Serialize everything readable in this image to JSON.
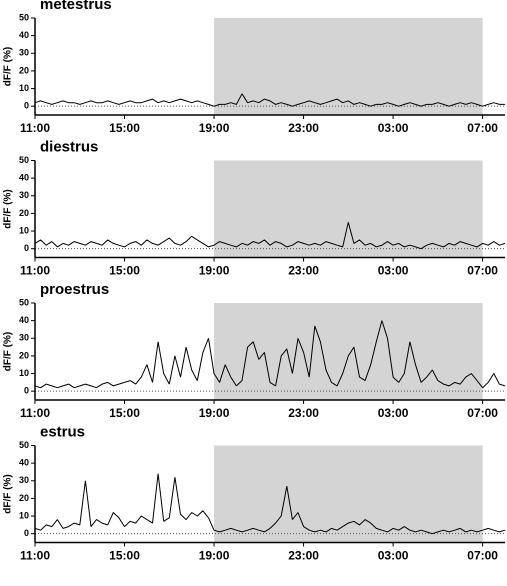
{
  "chart_data": [
    {
      "type": "line",
      "title": "metestrus",
      "ylabel": "dF/F (%)",
      "color": "#000000",
      "shade_color": "#d4d4d4",
      "shaded_x": [
        19,
        31
      ],
      "x": [
        11,
        11.25,
        11.5,
        11.75,
        12,
        12.25,
        12.5,
        12.75,
        13,
        13.25,
        13.5,
        13.75,
        14,
        14.25,
        14.5,
        14.75,
        15,
        15.25,
        15.5,
        15.75,
        16,
        16.25,
        16.5,
        16.75,
        17,
        17.25,
        17.5,
        17.75,
        18,
        18.25,
        18.5,
        18.75,
        19,
        19.25,
        19.5,
        19.75,
        20,
        20.25,
        20.5,
        20.75,
        21,
        21.25,
        21.5,
        21.75,
        22,
        22.25,
        22.5,
        22.75,
        23,
        23.25,
        23.5,
        23.75,
        24,
        24.25,
        24.5,
        24.75,
        25,
        25.25,
        25.5,
        25.75,
        26,
        26.25,
        26.5,
        26.75,
        27,
        27.25,
        27.5,
        27.75,
        28,
        28.25,
        28.5,
        28.75,
        29,
        29.25,
        29.5,
        29.75,
        30,
        30.25,
        30.5,
        30.75,
        31,
        31.25,
        31.5,
        31.75,
        32
      ],
      "values": [
        2,
        3,
        2,
        1,
        2,
        3,
        2,
        2,
        1,
        2,
        3,
        2,
        2,
        3,
        2,
        1,
        2,
        3,
        2,
        2,
        3,
        4,
        2,
        3,
        2,
        3,
        4,
        3,
        2,
        3,
        2,
        1,
        0,
        1,
        1,
        2,
        1,
        7,
        2,
        3,
        2,
        4,
        3,
        1,
        2,
        1,
        0,
        1,
        2,
        3,
        2,
        1,
        2,
        3,
        4,
        2,
        3,
        1,
        2,
        1,
        0,
        1,
        1,
        2,
        1,
        0,
        1,
        2,
        1,
        0,
        1,
        1,
        2,
        1,
        0,
        1,
        2,
        1,
        2,
        1,
        0,
        1,
        2,
        1,
        1
      ],
      "xlim": [
        11,
        32
      ],
      "ylim": [
        -5,
        50
      ],
      "yticks": [
        0,
        10,
        20,
        30,
        40,
        50
      ],
      "xticks": [
        {
          "value": 11,
          "label": "11:00"
        },
        {
          "value": 15,
          "label": "15:00"
        },
        {
          "value": 19,
          "label": "19:00"
        },
        {
          "value": 23,
          "label": "23:00"
        },
        {
          "value": 27,
          "label": "03:00"
        },
        {
          "value": 31,
          "label": "07:00"
        }
      ]
    },
    {
      "type": "line",
      "title": "diestrus",
      "ylabel": "dF/F (%)",
      "color": "#000000",
      "shade_color": "#d4d4d4",
      "shaded_x": [
        19,
        31
      ],
      "x": [
        11,
        11.25,
        11.5,
        11.75,
        12,
        12.25,
        12.5,
        12.75,
        13,
        13.25,
        13.5,
        13.75,
        14,
        14.25,
        14.5,
        14.75,
        15,
        15.25,
        15.5,
        15.75,
        16,
        16.25,
        16.5,
        16.75,
        17,
        17.25,
        17.5,
        17.75,
        18,
        18.25,
        18.5,
        18.75,
        19,
        19.25,
        19.5,
        19.75,
        20,
        20.25,
        20.5,
        20.75,
        21,
        21.25,
        21.5,
        21.75,
        22,
        22.25,
        22.5,
        22.75,
        23,
        23.25,
        23.5,
        23.75,
        24,
        24.25,
        24.5,
        24.75,
        25,
        25.25,
        25.5,
        25.75,
        26,
        26.25,
        26.5,
        26.75,
        27,
        27.25,
        27.5,
        27.75,
        28,
        28.25,
        28.5,
        28.75,
        29,
        29.25,
        29.5,
        29.75,
        30,
        30.25,
        30.5,
        30.75,
        31,
        31.25,
        31.5,
        31.75,
        32
      ],
      "values": [
        3,
        5,
        2,
        4,
        1,
        3,
        2,
        4,
        3,
        2,
        4,
        3,
        2,
        5,
        3,
        2,
        1,
        3,
        4,
        2,
        5,
        3,
        2,
        4,
        6,
        3,
        2,
        4,
        7,
        5,
        3,
        1,
        2,
        4,
        3,
        2,
        1,
        3,
        2,
        4,
        3,
        5,
        2,
        4,
        3,
        1,
        2,
        4,
        3,
        2,
        3,
        2,
        4,
        3,
        2,
        1,
        15,
        3,
        5,
        2,
        3,
        1,
        2,
        4,
        2,
        3,
        1,
        2,
        1,
        0,
        2,
        3,
        2,
        1,
        3,
        2,
        4,
        3,
        2,
        1,
        3,
        2,
        4,
        2,
        3
      ],
      "xlim": [
        11,
        32
      ],
      "ylim": [
        -5,
        50
      ],
      "yticks": [
        0,
        10,
        20,
        30,
        40,
        50
      ],
      "xticks": [
        {
          "value": 11,
          "label": "11:00"
        },
        {
          "value": 15,
          "label": "15:00"
        },
        {
          "value": 19,
          "label": "19:00"
        },
        {
          "value": 23,
          "label": "23:00"
        },
        {
          "value": 27,
          "label": "03:00"
        },
        {
          "value": 31,
          "label": "07:00"
        }
      ]
    },
    {
      "type": "line",
      "title": "proestrus",
      "ylabel": "dF/F (%)",
      "color": "#000000",
      "shade_color": "#d4d4d4",
      "shaded_x": [
        19,
        31
      ],
      "x": [
        11,
        11.25,
        11.5,
        11.75,
        12,
        12.25,
        12.5,
        12.75,
        13,
        13.25,
        13.5,
        13.75,
        14,
        14.25,
        14.5,
        14.75,
        15,
        15.25,
        15.5,
        15.75,
        16,
        16.25,
        16.5,
        16.75,
        17,
        17.25,
        17.5,
        17.75,
        18,
        18.25,
        18.5,
        18.75,
        19,
        19.25,
        19.5,
        19.75,
        20,
        20.25,
        20.5,
        20.75,
        21,
        21.25,
        21.5,
        21.75,
        22,
        22.25,
        22.5,
        22.75,
        23,
        23.25,
        23.5,
        23.75,
        24,
        24.25,
        24.5,
        24.75,
        25,
        25.25,
        25.5,
        25.75,
        26,
        26.25,
        26.5,
        26.75,
        27,
        27.25,
        27.5,
        27.75,
        28,
        28.25,
        28.5,
        28.75,
        29,
        29.25,
        29.5,
        29.75,
        30,
        30.25,
        30.5,
        30.75,
        31,
        31.25,
        31.5,
        31.75,
        32
      ],
      "values": [
        3,
        2,
        4,
        3,
        2,
        3,
        4,
        2,
        3,
        4,
        3,
        2,
        4,
        5,
        3,
        4,
        5,
        6,
        4,
        8,
        15,
        5,
        28,
        10,
        4,
        20,
        8,
        25,
        12,
        6,
        22,
        30,
        10,
        5,
        15,
        8,
        3,
        6,
        25,
        28,
        18,
        22,
        5,
        3,
        20,
        24,
        10,
        30,
        22,
        8,
        37,
        28,
        12,
        5,
        3,
        10,
        20,
        25,
        8,
        6,
        15,
        28,
        40,
        30,
        8,
        5,
        10,
        28,
        15,
        5,
        8,
        12,
        6,
        4,
        3,
        5,
        4,
        8,
        10,
        6,
        2,
        5,
        10,
        4,
        3
      ],
      "xlim": [
        11,
        32
      ],
      "ylim": [
        -5,
        50
      ],
      "yticks": [
        0,
        10,
        20,
        30,
        40,
        50
      ],
      "xticks": [
        {
          "value": 11,
          "label": "11:00"
        },
        {
          "value": 15,
          "label": "15:00"
        },
        {
          "value": 19,
          "label": "19:00"
        },
        {
          "value": 23,
          "label": "23:00"
        },
        {
          "value": 27,
          "label": "03:00"
        },
        {
          "value": 31,
          "label": "07:00"
        }
      ]
    },
    {
      "type": "line",
      "title": "estrus",
      "ylabel": "dF/F (%)",
      "color": "#000000",
      "shade_color": "#d4d4d4",
      "shaded_x": [
        19,
        31
      ],
      "x": [
        11,
        11.25,
        11.5,
        11.75,
        12,
        12.25,
        12.5,
        12.75,
        13,
        13.25,
        13.5,
        13.75,
        14,
        14.25,
        14.5,
        14.75,
        15,
        15.25,
        15.5,
        15.75,
        16,
        16.25,
        16.5,
        16.75,
        17,
        17.25,
        17.5,
        17.75,
        18,
        18.25,
        18.5,
        18.75,
        19,
        19.25,
        19.5,
        19.75,
        20,
        20.25,
        20.5,
        20.75,
        21,
        21.25,
        21.5,
        21.75,
        22,
        22.25,
        22.5,
        22.75,
        23,
        23.25,
        23.5,
        23.75,
        24,
        24.25,
        24.5,
        24.75,
        25,
        25.25,
        25.5,
        25.75,
        26,
        26.25,
        26.5,
        26.75,
        27,
        27.25,
        27.5,
        27.75,
        28,
        28.25,
        28.5,
        28.75,
        29,
        29.25,
        29.5,
        29.75,
        30,
        30.25,
        30.5,
        30.75,
        31,
        31.25,
        31.5,
        31.75,
        32
      ],
      "values": [
        3,
        2,
        5,
        4,
        8,
        3,
        4,
        6,
        5,
        30,
        4,
        8,
        6,
        5,
        12,
        9,
        4,
        7,
        6,
        10,
        8,
        6,
        34,
        7,
        9,
        32,
        11,
        8,
        12,
        10,
        13,
        9,
        2,
        1,
        2,
        3,
        2,
        1,
        2,
        3,
        2,
        1,
        3,
        6,
        10,
        27,
        8,
        12,
        4,
        2,
        1,
        2,
        1,
        3,
        2,
        4,
        6,
        7,
        5,
        8,
        6,
        3,
        2,
        1,
        3,
        2,
        4,
        2,
        1,
        2,
        1,
        0,
        1,
        2,
        1,
        2,
        3,
        1,
        2,
        1,
        2,
        3,
        2,
        1,
        2
      ],
      "xlim": [
        11,
        32
      ],
      "ylim": [
        -5,
        50
      ],
      "yticks": [
        0,
        10,
        20,
        30,
        40,
        50
      ],
      "xticks": [
        {
          "value": 11,
          "label": "11:00"
        },
        {
          "value": 15,
          "label": "15:00"
        },
        {
          "value": 19,
          "label": "19:00"
        },
        {
          "value": 23,
          "label": "23:00"
        },
        {
          "value": 27,
          "label": "03:00"
        },
        {
          "value": 31,
          "label": "07:00"
        }
      ]
    }
  ]
}
